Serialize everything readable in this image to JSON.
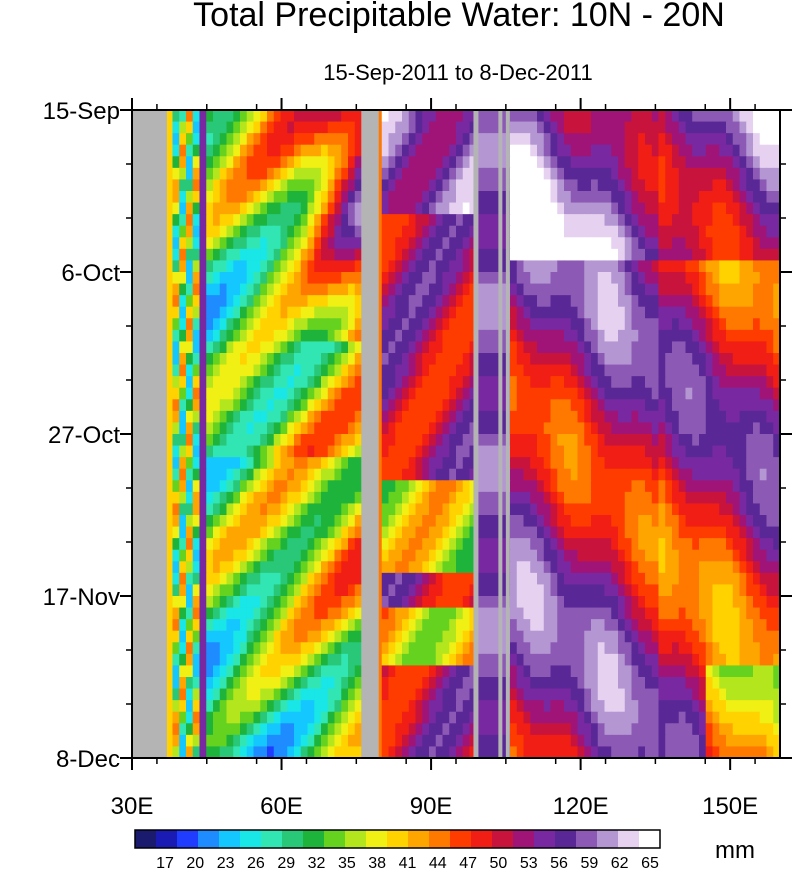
{
  "chart_data": {
    "type": "heatmap",
    "title": "Total Precipitable Water: 10N - 20N",
    "subtitle": "15-Sep-2011 to 8-Dec-2011",
    "x_axis": {
      "range": [
        30,
        160
      ],
      "ticks": [
        30,
        60,
        90,
        120,
        150
      ],
      "tick_labels": [
        "30E",
        "60E",
        "90E",
        "120E",
        "150E"
      ]
    },
    "y_axis": {
      "range": [
        "15-Sep-2011",
        "8-Dec-2011"
      ],
      "reversed": true,
      "ticks_day_offset": [
        0,
        21,
        42,
        63,
        84
      ],
      "tick_labels": [
        "15-Sep",
        "6-Oct",
        "27-Oct",
        "17-Nov",
        "8-Dec"
      ]
    },
    "colorbar": {
      "unit": "mm",
      "tick_labels": [
        "17",
        "20",
        "23",
        "26",
        "29",
        "32",
        "35",
        "38",
        "41",
        "44",
        "47",
        "50",
        "53",
        "56",
        "59",
        "62",
        "65"
      ],
      "min": 15,
      "max": 66
    },
    "missing_color": "#b4b4b4",
    "missing_bands_lon": [
      [
        30,
        37
      ],
      [
        76,
        79.5
      ],
      [
        98.5,
        99.5
      ],
      [
        103.5,
        104.3
      ],
      [
        105,
        105.8
      ]
    ],
    "colormap": [
      "#1a1a6e",
      "#1a1ab4",
      "#1f3cff",
      "#1e8cff",
      "#14c8ff",
      "#19e6e6",
      "#32e6b4",
      "#28c878",
      "#1eb43c",
      "#64d21e",
      "#b4e61e",
      "#f0f014",
      "#ffd200",
      "#ffa500",
      "#ff7800",
      "#ff3c00",
      "#f01e14",
      "#c8143c",
      "#a01478",
      "#7828a0",
      "#5a2896",
      "#8c5ab4",
      "#b496d2",
      "#e6d2f0",
      "#ffffff"
    ]
  }
}
